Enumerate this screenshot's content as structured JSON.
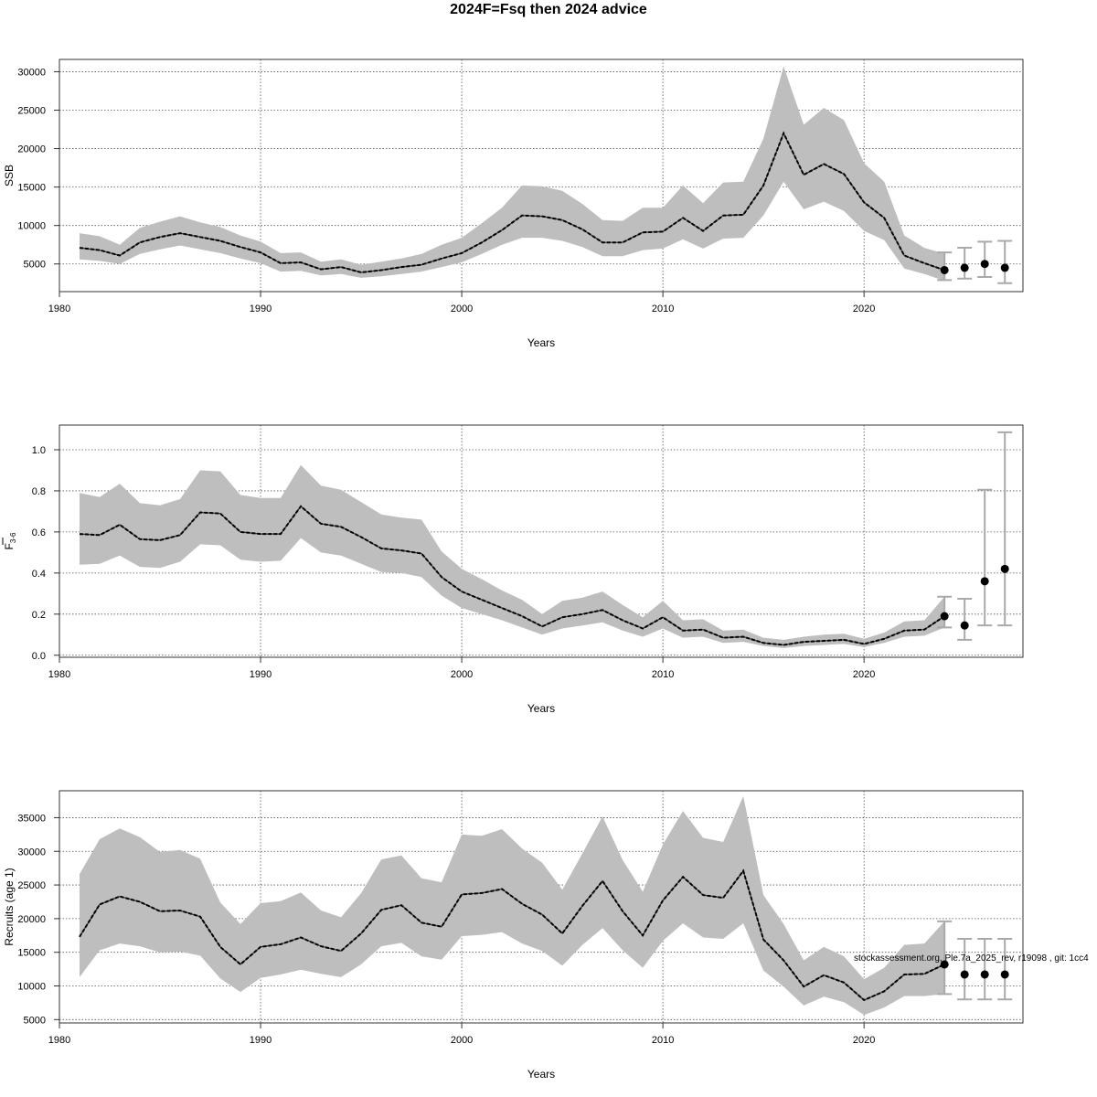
{
  "title": "2024F=Fsq then 2024 advice",
  "watermark": "stockassessment.org, Ple.7a_2025_rev, r19098 , git: 1cc4",
  "colors": {
    "band": "#bebebe",
    "line": "#000000",
    "grid": "#555555",
    "errorbar": "#a9a9a9"
  },
  "chart_data": [
    {
      "type": "line",
      "ylabel": "SSB",
      "xlabel": "Years",
      "xlim": [
        1980,
        2027.9
      ],
      "ylim": [
        1400,
        31600
      ],
      "xticks": [
        1980,
        1990,
        2000,
        2010,
        2020
      ],
      "yticks": [
        5000,
        10000,
        15000,
        20000,
        25000,
        30000
      ],
      "series": [
        {
          "x": [
            1981,
            1982,
            1983,
            1984,
            1985,
            1986,
            1987,
            1988,
            1989,
            1990,
            1991,
            1992,
            1993,
            1994,
            1995,
            1996,
            1997,
            1998,
            1999,
            2000,
            2001,
            2002,
            2003,
            2004,
            2005,
            2006,
            2007,
            2008,
            2009,
            2010,
            2011,
            2012,
            2013,
            2014,
            2015,
            2016,
            2017,
            2018,
            2019,
            2020,
            2021,
            2022,
            2023,
            2024
          ],
          "estimate": [
            7100,
            6800,
            6100,
            7800,
            8500,
            9000,
            8500,
            8000,
            7200,
            6500,
            5100,
            5200,
            4300,
            4600,
            3900,
            4200,
            4600,
            4900,
            5700,
            6400,
            7800,
            9400,
            11300,
            11200,
            10700,
            9500,
            7800,
            7800,
            9100,
            9200,
            11000,
            9300,
            11300,
            11400,
            15200,
            22000,
            16600,
            18000,
            16700,
            13000,
            11000,
            6100,
            5100,
            4200
          ],
          "lower": [
            5600,
            5400,
            5000,
            6300,
            6900,
            7400,
            6900,
            6400,
            5700,
            5100,
            4000,
            4100,
            3500,
            3700,
            3200,
            3400,
            3700,
            4000,
            4600,
            5200,
            6300,
            7500,
            8400,
            8400,
            8000,
            7200,
            6000,
            6000,
            6800,
            7000,
            8200,
            7000,
            8300,
            8400,
            11300,
            15700,
            12100,
            13100,
            11900,
            9300,
            8100,
            4400,
            3700,
            2800
          ],
          "upper": [
            9000,
            8600,
            7500,
            9700,
            10500,
            11200,
            10400,
            9800,
            8700,
            7900,
            6400,
            6500,
            5300,
            5600,
            4900,
            5300,
            5700,
            6300,
            7500,
            8400,
            10300,
            12300,
            15200,
            15100,
            14500,
            12800,
            10700,
            10600,
            12300,
            12300,
            15200,
            12900,
            15600,
            15700,
            21300,
            30700,
            23100,
            25300,
            23700,
            18100,
            15700,
            8700,
            7100,
            6300
          ]
        }
      ],
      "forecast": [
        {
          "x": 2024,
          "mid": 4200,
          "low": 2900,
          "high": 6500
        },
        {
          "x": 2025,
          "mid": 4500,
          "low": 3100,
          "high": 7100
        },
        {
          "x": 2026,
          "mid": 5000,
          "low": 3300,
          "high": 7900
        },
        {
          "x": 2027,
          "mid": 4500,
          "low": 2500,
          "high": 8000
        }
      ]
    },
    {
      "type": "line",
      "ylabel": "F",
      "ylabel_sub": "3-6",
      "xlabel": "Years",
      "xlim": [
        1980,
        2027.9
      ],
      "ylim": [
        -0.01,
        1.12
      ],
      "xticks": [
        1980,
        1990,
        2000,
        2010,
        2020
      ],
      "yticks": [
        0.0,
        0.2,
        0.4,
        0.6,
        0.8,
        1.0
      ],
      "ytick_labels": [
        "0.0",
        "0.2",
        "0.4",
        "0.6",
        "0.8",
        "1.0"
      ],
      "series": [
        {
          "x": [
            1981,
            1982,
            1983,
            1984,
            1985,
            1986,
            1987,
            1988,
            1989,
            1990,
            1991,
            1992,
            1993,
            1994,
            1995,
            1996,
            1997,
            1998,
            1999,
            2000,
            2001,
            2002,
            2003,
            2004,
            2005,
            2006,
            2007,
            2008,
            2009,
            2010,
            2011,
            2012,
            2013,
            2014,
            2015,
            2016,
            2017,
            2018,
            2019,
            2020,
            2021,
            2022,
            2023,
            2024
          ],
          "estimate": [
            0.59,
            0.585,
            0.635,
            0.565,
            0.56,
            0.585,
            0.695,
            0.69,
            0.6,
            0.59,
            0.59,
            0.725,
            0.64,
            0.625,
            0.575,
            0.52,
            0.51,
            0.495,
            0.38,
            0.31,
            0.27,
            0.23,
            0.19,
            0.14,
            0.185,
            0.2,
            0.22,
            0.17,
            0.13,
            0.185,
            0.12,
            0.125,
            0.085,
            0.09,
            0.06,
            0.05,
            0.065,
            0.07,
            0.075,
            0.055,
            0.08,
            0.12,
            0.125,
            0.19
          ],
          "lower": [
            0.44,
            0.445,
            0.485,
            0.43,
            0.425,
            0.455,
            0.54,
            0.535,
            0.465,
            0.455,
            0.46,
            0.57,
            0.5,
            0.485,
            0.445,
            0.405,
            0.4,
            0.38,
            0.29,
            0.23,
            0.2,
            0.17,
            0.135,
            0.1,
            0.13,
            0.145,
            0.16,
            0.12,
            0.09,
            0.13,
            0.085,
            0.09,
            0.06,
            0.065,
            0.045,
            0.035,
            0.045,
            0.05,
            0.055,
            0.04,
            0.06,
            0.09,
            0.095,
            0.135
          ],
          "upper": [
            0.79,
            0.77,
            0.835,
            0.74,
            0.73,
            0.76,
            0.9,
            0.895,
            0.78,
            0.765,
            0.765,
            0.925,
            0.825,
            0.805,
            0.745,
            0.685,
            0.67,
            0.66,
            0.505,
            0.42,
            0.37,
            0.315,
            0.27,
            0.2,
            0.265,
            0.28,
            0.31,
            0.245,
            0.185,
            0.265,
            0.17,
            0.175,
            0.12,
            0.125,
            0.085,
            0.075,
            0.09,
            0.1,
            0.105,
            0.08,
            0.11,
            0.165,
            0.17,
            0.285
          ]
        }
      ],
      "forecast": [
        {
          "x": 2024,
          "mid": 0.19,
          "low": 0.135,
          "high": 0.285
        },
        {
          "x": 2025,
          "mid": 0.145,
          "low": 0.075,
          "high": 0.275
        },
        {
          "x": 2026,
          "mid": 0.36,
          "low": 0.145,
          "high": 0.805
        },
        {
          "x": 2027,
          "mid": 0.42,
          "low": 0.145,
          "high": 1.085
        }
      ]
    },
    {
      "type": "line",
      "ylabel": "Recruits (age 1)",
      "xlabel": "Years",
      "xlim": [
        1980,
        2027.9
      ],
      "ylim": [
        4500,
        39000
      ],
      "xticks": [
        1980,
        1990,
        2000,
        2010,
        2020
      ],
      "yticks": [
        5000,
        10000,
        15000,
        20000,
        25000,
        30000,
        35000
      ],
      "series": [
        {
          "x": [
            1981,
            1982,
            1983,
            1984,
            1985,
            1986,
            1987,
            1988,
            1989,
            1990,
            1991,
            1992,
            1993,
            1994,
            1995,
            1996,
            1997,
            1998,
            1999,
            2000,
            2001,
            2002,
            2003,
            2004,
            2005,
            2006,
            2007,
            2008,
            2009,
            2010,
            2011,
            2012,
            2013,
            2014,
            2015,
            2016,
            2017,
            2018,
            2019,
            2020,
            2021,
            2022,
            2023,
            2024
          ],
          "estimate": [
            17300,
            22100,
            23300,
            22500,
            21100,
            21200,
            20300,
            15800,
            13200,
            15800,
            16200,
            17200,
            15900,
            15200,
            17800,
            21300,
            22000,
            19400,
            18800,
            23600,
            23800,
            24400,
            22200,
            20600,
            17800,
            21900,
            25600,
            21100,
            17500,
            22700,
            26200,
            23500,
            23100,
            27100,
            16900,
            13800,
            9900,
            11600,
            10500,
            7900,
            9200,
            11700,
            11800,
            13200
          ],
          "lower": [
            11300,
            15300,
            16300,
            15900,
            15000,
            15100,
            14500,
            11100,
            9100,
            11200,
            11700,
            12400,
            11800,
            11300,
            13200,
            15900,
            16400,
            14400,
            13900,
            17400,
            17600,
            18000,
            16300,
            15200,
            13000,
            16100,
            18600,
            15300,
            12700,
            16700,
            19300,
            17200,
            17000,
            19300,
            12300,
            9900,
            7100,
            8400,
            7600,
            5700,
            6800,
            8500,
            8500,
            8800
          ],
          "upper": [
            26600,
            31800,
            33400,
            32100,
            29900,
            30200,
            28900,
            22400,
            19200,
            22300,
            22600,
            23900,
            21200,
            20200,
            23800,
            28800,
            29400,
            26000,
            25400,
            32500,
            32300,
            33300,
            30400,
            28300,
            24300,
            29700,
            35200,
            28700,
            24000,
            31000,
            36000,
            32000,
            31400,
            38200,
            23500,
            19200,
            13800,
            15800,
            14400,
            11000,
            12700,
            16100,
            16300,
            19600
          ]
        }
      ],
      "forecast": [
        {
          "x": 2024,
          "mid": 13200,
          "low": 8800,
          "high": 19600
        },
        {
          "x": 2025,
          "mid": 11700,
          "low": 8000,
          "high": 17000
        },
        {
          "x": 2026,
          "mid": 11700,
          "low": 8000,
          "high": 17000
        },
        {
          "x": 2027,
          "mid": 11700,
          "low": 8000,
          "high": 17000
        }
      ]
    }
  ]
}
